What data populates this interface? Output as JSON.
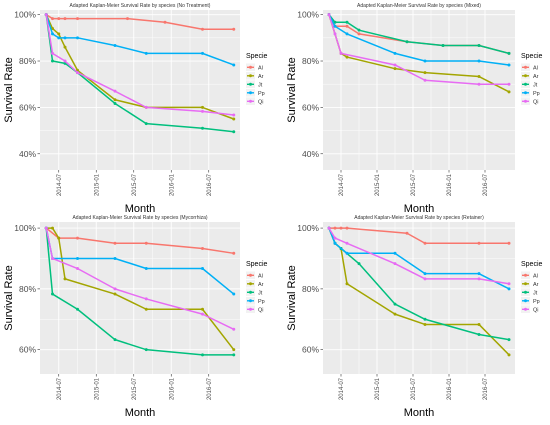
{
  "chart_data": [
    {
      "type": "line",
      "title": "Adapted Kaplan-Meier Survival Rate by species (No Treatment)",
      "xlabel": "Month",
      "ylabel": "Survival Rate",
      "x_ticks": [
        "2014-07",
        "2015-01",
        "2015-07",
        "2016-01",
        "2016-07"
      ],
      "y_ticks": [
        "40%",
        "60%",
        "80%",
        "100%"
      ],
      "ylim": [
        0.33,
        1.02
      ],
      "grid": true,
      "legend": {
        "title": "Specie",
        "position": "right"
      },
      "series": [
        {
          "name": "Al",
          "color": "#F8766D",
          "points": [
            [
              "2014-05",
              1.0
            ],
            [
              "2014-06",
              0.983
            ],
            [
              "2014-07",
              0.983
            ],
            [
              "2014-08",
              0.983
            ],
            [
              "2014-10",
              0.983
            ],
            [
              "2015-06",
              0.983
            ],
            [
              "2015-12",
              0.967
            ],
            [
              "2016-06",
              0.937
            ],
            [
              "2016-11",
              0.937
            ]
          ]
        },
        {
          "name": "Ar",
          "color": "#A3A500",
          "points": [
            [
              "2014-05",
              1.0
            ],
            [
              "2014-06",
              0.94
            ],
            [
              "2014-07",
              0.917
            ],
            [
              "2014-08",
              0.86
            ],
            [
              "2014-10",
              0.76
            ],
            [
              "2015-04",
              0.633
            ],
            [
              "2015-09",
              0.6
            ],
            [
              "2016-06",
              0.6
            ],
            [
              "2016-11",
              0.55
            ]
          ]
        },
        {
          "name": "Jt",
          "color": "#00BF7D",
          "points": [
            [
              "2014-05",
              1.0
            ],
            [
              "2014-06",
              0.8
            ],
            [
              "2014-08",
              0.79
            ],
            [
              "2014-10",
              0.75
            ],
            [
              "2015-04",
              0.617
            ],
            [
              "2015-09",
              0.53
            ],
            [
              "2016-06",
              0.51
            ],
            [
              "2016-11",
              0.495
            ]
          ]
        },
        {
          "name": "Pp",
          "color": "#00B0F6",
          "points": [
            [
              "2014-05",
              1.0
            ],
            [
              "2014-06",
              0.917
            ],
            [
              "2014-07",
              0.9
            ],
            [
              "2014-08",
              0.9
            ],
            [
              "2014-10",
              0.9
            ],
            [
              "2015-04",
              0.867
            ],
            [
              "2015-09",
              0.833
            ],
            [
              "2016-06",
              0.833
            ],
            [
              "2016-11",
              0.783
            ]
          ]
        },
        {
          "name": "Qi",
          "color": "#E76BF3",
          "points": [
            [
              "2014-05",
              1.0
            ],
            [
              "2014-06",
              0.833
            ],
            [
              "2014-08",
              0.8
            ],
            [
              "2014-10",
              0.75
            ],
            [
              "2015-04",
              0.67
            ],
            [
              "2015-09",
              0.6
            ],
            [
              "2016-06",
              0.583
            ],
            [
              "2016-11",
              0.567
            ]
          ]
        }
      ]
    },
    {
      "type": "line",
      "title": "Adapted Kaplan-Meier Survival Rate by species (Mixed)",
      "xlabel": "Month",
      "ylabel": "Survival Rate",
      "x_ticks": [
        "2014-07",
        "2015-01",
        "2015-07",
        "2016-01",
        "2016-07"
      ],
      "y_ticks": [
        "40%",
        "60%",
        "80%",
        "100%"
      ],
      "ylim": [
        0.33,
        1.02
      ],
      "grid": true,
      "legend": {
        "title": "Specie",
        "position": "right"
      },
      "series": [
        {
          "name": "Al",
          "color": "#F8766D",
          "points": [
            [
              "2014-05",
              1.0
            ],
            [
              "2014-06",
              0.95
            ],
            [
              "2014-08",
              0.95
            ],
            [
              "2014-10",
              0.917
            ],
            [
              "2015-06",
              0.883
            ],
            [
              "2015-12",
              0.867
            ],
            [
              "2016-06",
              0.867
            ],
            [
              "2016-11",
              0.833
            ]
          ]
        },
        {
          "name": "Ar",
          "color": "#A3A500",
          "points": [
            [
              "2014-05",
              1.0
            ],
            [
              "2014-07",
              0.833
            ],
            [
              "2014-08",
              0.817
            ],
            [
              "2015-04",
              0.767
            ],
            [
              "2015-09",
              0.75
            ],
            [
              "2016-06",
              0.733
            ],
            [
              "2016-11",
              0.667
            ]
          ]
        },
        {
          "name": "Jt",
          "color": "#00BF7D",
          "points": [
            [
              "2014-05",
              1.0
            ],
            [
              "2014-06",
              0.967
            ],
            [
              "2014-08",
              0.967
            ],
            [
              "2014-10",
              0.933
            ],
            [
              "2015-06",
              0.883
            ],
            [
              "2015-12",
              0.867
            ],
            [
              "2016-06",
              0.867
            ],
            [
              "2016-11",
              0.833
            ]
          ]
        },
        {
          "name": "Pp",
          "color": "#00B0F6",
          "points": [
            [
              "2014-05",
              1.0
            ],
            [
              "2014-06",
              0.95
            ],
            [
              "2014-08",
              0.917
            ],
            [
              "2015-04",
              0.833
            ],
            [
              "2015-09",
              0.8
            ],
            [
              "2016-06",
              0.8
            ],
            [
              "2016-11",
              0.783
            ]
          ]
        },
        {
          "name": "Qi",
          "color": "#E76BF3",
          "points": [
            [
              "2014-05",
              1.0
            ],
            [
              "2014-06",
              0.917
            ],
            [
              "2014-07",
              0.833
            ],
            [
              "2015-04",
              0.783
            ],
            [
              "2015-09",
              0.717
            ],
            [
              "2016-06",
              0.7
            ],
            [
              "2016-11",
              0.7
            ]
          ]
        }
      ]
    },
    {
      "type": "line",
      "title": "Adapted Kaplan-Meier Survival Rate by species (Mycorrhiza)",
      "xlabel": "Month",
      "ylabel": "Survival Rate",
      "x_ticks": [
        "2014-07",
        "2015-01",
        "2015-07",
        "2016-01",
        "2016-07"
      ],
      "y_ticks": [
        "60%",
        "80%",
        "100%"
      ],
      "ylim": [
        0.52,
        1.02
      ],
      "grid": true,
      "legend": {
        "title": "Specie",
        "position": "right"
      },
      "series": [
        {
          "name": "Al",
          "color": "#F8766D",
          "points": [
            [
              "2014-05",
              1.0
            ],
            [
              "2014-07",
              0.967
            ],
            [
              "2014-10",
              0.967
            ],
            [
              "2015-04",
              0.95
            ],
            [
              "2015-09",
              0.95
            ],
            [
              "2016-06",
              0.933
            ],
            [
              "2016-11",
              0.917
            ]
          ]
        },
        {
          "name": "Ar",
          "color": "#A3A500",
          "points": [
            [
              "2014-05",
              1.0
            ],
            [
              "2014-06",
              1.0
            ],
            [
              "2014-07",
              0.967
            ],
            [
              "2014-08",
              0.833
            ],
            [
              "2015-04",
              0.783
            ],
            [
              "2015-09",
              0.733
            ],
            [
              "2016-06",
              0.733
            ],
            [
              "2016-11",
              0.6
            ]
          ]
        },
        {
          "name": "Jt",
          "color": "#00BF7D",
          "points": [
            [
              "2014-05",
              1.0
            ],
            [
              "2014-06",
              0.783
            ],
            [
              "2014-10",
              0.733
            ],
            [
              "2015-04",
              0.633
            ],
            [
              "2015-09",
              0.6
            ],
            [
              "2016-06",
              0.583
            ],
            [
              "2016-11",
              0.583
            ]
          ]
        },
        {
          "name": "Pp",
          "color": "#00B0F6",
          "points": [
            [
              "2014-05",
              1.0
            ],
            [
              "2014-06",
              0.9
            ],
            [
              "2014-10",
              0.9
            ],
            [
              "2015-04",
              0.9
            ],
            [
              "2015-09",
              0.867
            ],
            [
              "2016-06",
              0.867
            ],
            [
              "2016-11",
              0.783
            ]
          ]
        },
        {
          "name": "Qi",
          "color": "#E76BF3",
          "points": [
            [
              "2014-05",
              1.0
            ],
            [
              "2014-06",
              0.9
            ],
            [
              "2014-10",
              0.867
            ],
            [
              "2015-04",
              0.8
            ],
            [
              "2015-09",
              0.767
            ],
            [
              "2016-06",
              0.717
            ],
            [
              "2016-11",
              0.667
            ]
          ]
        }
      ]
    },
    {
      "type": "line",
      "title": "Adapted Kaplan-Meier Survival Rate by species (Retainer)",
      "xlabel": "Month",
      "ylabel": "Survival Rate",
      "x_ticks": [
        "2014-07",
        "2015-01",
        "2015-07",
        "2016-01",
        "2016-07"
      ],
      "y_ticks": [
        "60%",
        "80%",
        "100%"
      ],
      "ylim": [
        0.52,
        1.02
      ],
      "grid": true,
      "legend": {
        "title": "Specie",
        "position": "right"
      },
      "series": [
        {
          "name": "Al",
          "color": "#F8766D",
          "points": [
            [
              "2014-05",
              1.0
            ],
            [
              "2014-06",
              1.0
            ],
            [
              "2014-07",
              1.0
            ],
            [
              "2014-08",
              1.0
            ],
            [
              "2015-06",
              0.983
            ],
            [
              "2015-09",
              0.95
            ],
            [
              "2016-06",
              0.95
            ],
            [
              "2016-11",
              0.95
            ]
          ]
        },
        {
          "name": "Ar",
          "color": "#A3A500",
          "points": [
            [
              "2014-05",
              1.0
            ],
            [
              "2014-06",
              0.95
            ],
            [
              "2014-07",
              0.933
            ],
            [
              "2014-08",
              0.817
            ],
            [
              "2015-04",
              0.717
            ],
            [
              "2015-09",
              0.683
            ],
            [
              "2016-06",
              0.683
            ],
            [
              "2016-11",
              0.583
            ]
          ]
        },
        {
          "name": "Jt",
          "color": "#00BF7D",
          "points": [
            [
              "2014-05",
              1.0
            ],
            [
              "2014-06",
              0.95
            ],
            [
              "2014-07",
              0.933
            ],
            [
              "2014-10",
              0.883
            ],
            [
              "2015-04",
              0.75
            ],
            [
              "2015-09",
              0.7
            ],
            [
              "2016-06",
              0.65
            ],
            [
              "2016-11",
              0.633
            ]
          ]
        },
        {
          "name": "Pp",
          "color": "#00B0F6",
          "points": [
            [
              "2014-05",
              1.0
            ],
            [
              "2014-06",
              0.95
            ],
            [
              "2014-08",
              0.917
            ],
            [
              "2015-04",
              0.917
            ],
            [
              "2015-09",
              0.85
            ],
            [
              "2016-06",
              0.85
            ],
            [
              "2016-11",
              0.8
            ]
          ]
        },
        {
          "name": "Qi",
          "color": "#E76BF3",
          "points": [
            [
              "2014-05",
              1.0
            ],
            [
              "2014-06",
              0.967
            ],
            [
              "2014-08",
              0.95
            ],
            [
              "2015-04",
              0.883
            ],
            [
              "2015-09",
              0.833
            ],
            [
              "2016-06",
              0.833
            ],
            [
              "2016-11",
              0.817
            ]
          ]
        }
      ]
    }
  ]
}
